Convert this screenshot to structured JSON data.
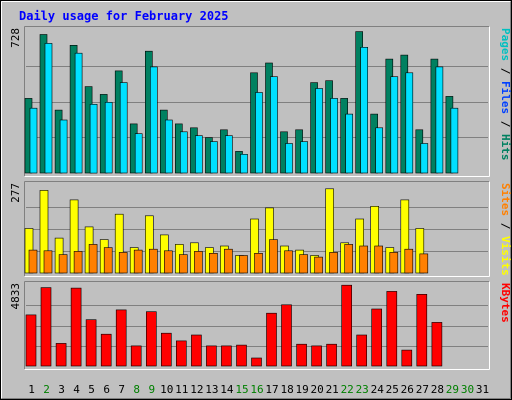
{
  "chart_data": {
    "type": "bar",
    "title": "Daily usage for February 2025",
    "categories": [
      "1",
      "2",
      "3",
      "4",
      "5",
      "6",
      "7",
      "8",
      "9",
      "10",
      "11",
      "12",
      "13",
      "14",
      "15",
      "16",
      "17",
      "18",
      "19",
      "20",
      "21",
      "22",
      "23",
      "24",
      "25",
      "26",
      "27",
      "28",
      "29",
      "30",
      "31"
    ],
    "weekend_days": [
      "2",
      "8",
      "9",
      "15",
      "16",
      "22",
      "23",
      "29",
      "30"
    ],
    "panels": [
      {
        "id": "top",
        "ymax": 728,
        "ymax_label": "728",
        "right_label": {
          "parts": [
            "Pages",
            " / ",
            "Files",
            " / ",
            "Hits"
          ],
          "colors": [
            "#00c0c0",
            "#000000",
            "#0040ff",
            "#000000",
            "#008060"
          ]
        },
        "series": [
          {
            "name": "Hits",
            "color": "#008060",
            "values": [
              380,
              705,
              320,
              650,
              440,
              400,
              520,
              250,
              620,
              320,
              250,
              230,
              180,
              220,
              110,
              510,
              560,
              210,
              220,
              460,
              470,
              380,
              720,
              300,
              580,
              600,
              220,
              580,
              390,
              0,
              0
            ]
          },
          {
            "name": "Files",
            "color": "#0040ff",
            "values": [
              0,
              0,
              0,
              0,
              0,
              0,
              0,
              0,
              0,
              0,
              0,
              0,
              0,
              0,
              0,
              0,
              0,
              0,
              0,
              0,
              0,
              0,
              0,
              0,
              0,
              0,
              0,
              0,
              0,
              0,
              0
            ]
          },
          {
            "name": "Pages",
            "color": "#00e0ff",
            "values": [
              330,
              660,
              270,
              610,
              350,
              360,
              460,
              200,
              540,
              270,
              210,
              190,
              160,
              190,
              95,
              410,
              490,
              150,
              160,
              430,
              380,
              300,
              640,
              230,
              490,
              510,
              150,
              540,
              330,
              0,
              0
            ]
          }
        ]
      },
      {
        "id": "middle",
        "ymax": 277,
        "ymax_label": "277",
        "right_label": {
          "parts": [
            "Sites",
            " / ",
            "Visits"
          ],
          "colors": [
            "#ff8000",
            "#000000",
            "#ffff00"
          ]
        },
        "series": [
          {
            "name": "Visits",
            "color": "#ffff00",
            "values": [
              140,
              260,
              110,
              230,
              145,
              105,
              185,
              80,
              180,
              120,
              90,
              95,
              80,
              85,
              55,
              170,
              205,
              85,
              72,
              55,
              265,
              95,
              170,
              210,
              80,
              230,
              140,
              0,
              0,
              0,
              0
            ]
          },
          {
            "name": "Sites",
            "color": "#ff8000",
            "values": [
              72,
              70,
              58,
              68,
              90,
              80,
              65,
              72,
              75,
              70,
              58,
              68,
              62,
              75,
              55,
              62,
              105,
              70,
              58,
              50,
              65,
              90,
              85,
              85,
              65,
              75,
              60,
              0,
              0,
              0,
              0
            ]
          }
        ]
      },
      {
        "id": "bottom",
        "ymax": 4833,
        "ymax_label": "4833",
        "right_label": {
          "parts": [
            "KBytes"
          ],
          "colors": [
            "#ff0000"
          ]
        },
        "series": [
          {
            "name": "KBytes",
            "color": "#ff0000",
            "values": [
              3050,
              4680,
              1350,
              4650,
              2760,
              1900,
              3350,
              1200,
              3240,
              1960,
              1500,
              1850,
              1200,
              1200,
              1250,
              480,
              3150,
              3650,
              1300,
              1200,
              1300,
              4820,
              1850,
              3400,
              4450,
              950,
              4280,
              2600,
              0,
              0,
              0
            ]
          }
        ]
      }
    ]
  }
}
